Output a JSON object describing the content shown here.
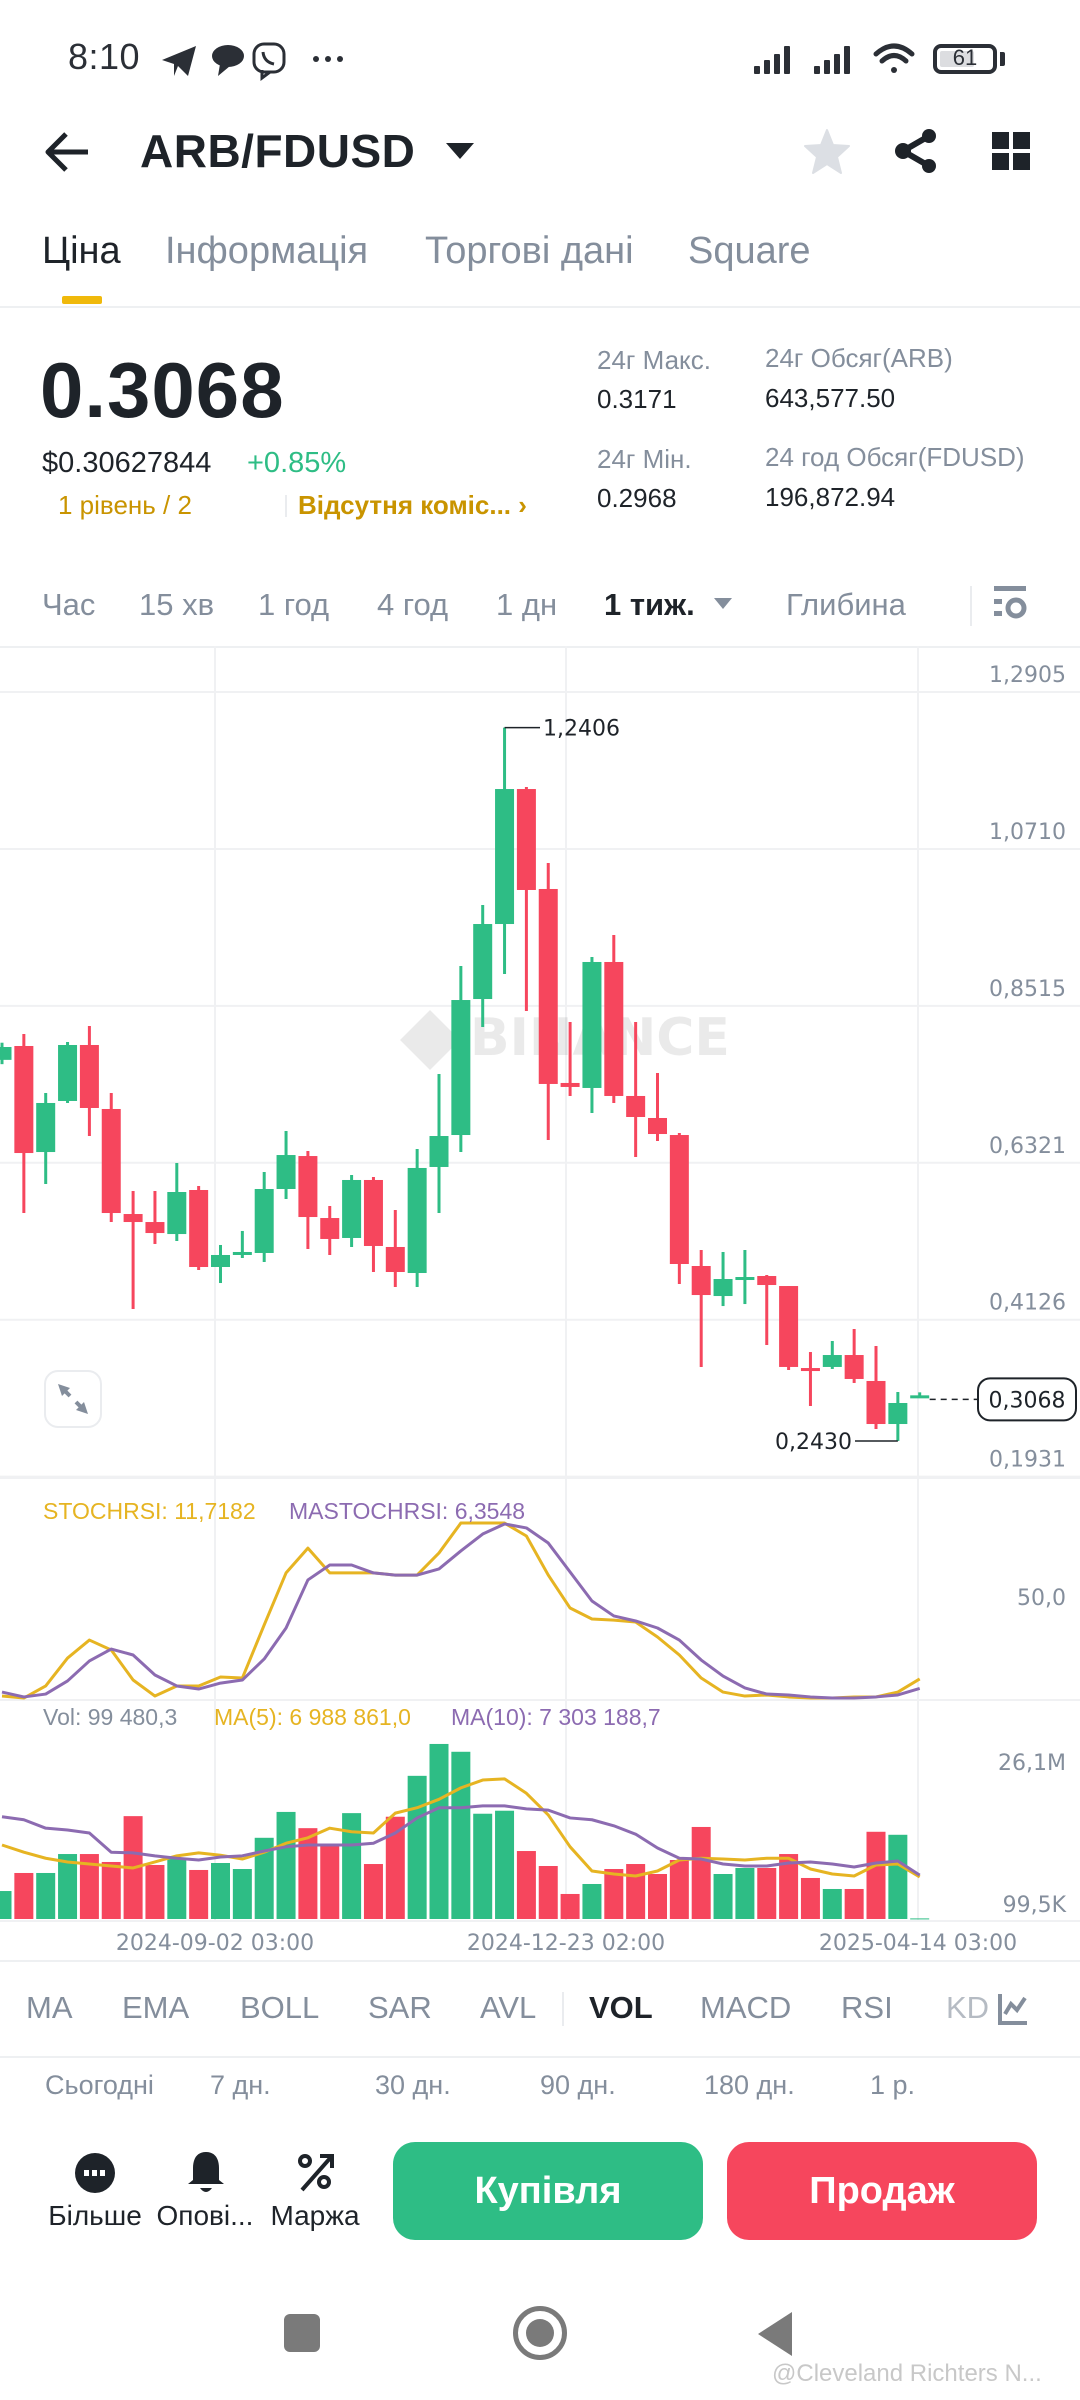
{
  "status_bar": {
    "time": "8:10",
    "notification_icons": [
      "telegram-icon",
      "chat-bubble-icon",
      "viber-icon",
      "more-dots-icon"
    ],
    "battery": "61",
    "signal_icons": [
      "signal-sim1-icon",
      "signal-sim2-icon",
      "wifi-icon"
    ]
  },
  "header": {
    "title": "ARB/FDUSD",
    "icons": [
      "back-arrow-icon",
      "star-icon",
      "share-icon",
      "grid-icon"
    ]
  },
  "tabs": [
    {
      "label": "Ціна",
      "active": true
    },
    {
      "label": "Інформація",
      "active": false
    },
    {
      "label": "Торгові дані",
      "active": false
    },
    {
      "label": "Square",
      "active": false
    }
  ],
  "price": {
    "last": "0.3068",
    "usd": "$0.30627844",
    "change_pct": "+0.85%",
    "tier": "1 рівень / 2",
    "fee": "Відсутня коміс... ›"
  },
  "stats": {
    "high_label": "24г Макс.",
    "high_value": "0.3171",
    "low_label": "24г Мін.",
    "low_value": "0.2968",
    "vol_base_label": "24г Обсяг(ARB)",
    "vol_base_value": "643,577.50",
    "vol_quote_label": "24 год Обсяг(FDUSD)",
    "vol_quote_value": "196,872.94"
  },
  "timeframes": [
    {
      "label": "Час",
      "active": false
    },
    {
      "label": "15 хв",
      "active": false
    },
    {
      "label": "1 год",
      "active": false
    },
    {
      "label": "4 год",
      "active": false
    },
    {
      "label": "1 дн",
      "active": false
    },
    {
      "label": "1 тиж.",
      "active": true
    },
    {
      "label": "Глибина",
      "active": false
    }
  ],
  "indicator_labels": {
    "stochrsi": "STOCHRSI: 11,7182",
    "mastochrsi": "MASTOCHRSI: 6,3548",
    "vol": "Vol: 99 480,3",
    "ma5": "MA(5): 6 988 861,0",
    "ma10": "MA(10): 7 303 188,7"
  },
  "indicator_tabs": [
    {
      "label": "MA",
      "active": false
    },
    {
      "label": "EMA",
      "active": false
    },
    {
      "label": "BOLL",
      "active": false
    },
    {
      "label": "SAR",
      "active": false
    },
    {
      "label": "AVL",
      "active": false
    },
    {
      "label": "VOL",
      "active": true
    },
    {
      "label": "MACD",
      "active": false
    },
    {
      "label": "RSI",
      "active": false
    },
    {
      "label": "KD",
      "active": false
    }
  ],
  "periods": [
    "Сьогодні",
    "7 дн.",
    "30 дн.",
    "90 дн.",
    "180 дн.",
    "1 р."
  ],
  "actions": {
    "more": "Більше",
    "alerts": "Опові...",
    "margin": "Маржа",
    "buy": "Купівля",
    "sell": "Продаж"
  },
  "watermark": "@Cleveland Richters N...",
  "colors": {
    "up": "#2ebd85",
    "down": "#f6465d",
    "accent": "#f0b90b",
    "stoch": "#e6b422",
    "mastoch": "#8c6bb1",
    "text_primary": "#1e2329",
    "text_secondary": "#848e9c"
  },
  "chart_data": {
    "type": "candlestick",
    "title": "ARB/FDUSD 1 тиж.",
    "price_axis": {
      "ticks": [
        "1,2905",
        "1,0710",
        "0,8515",
        "0,6321",
        "0,4126",
        "0,1931"
      ],
      "tick_values": [
        1.2905,
        1.071,
        0.8515,
        0.6321,
        0.4126,
        0.1931
      ],
      "range": [
        0.1931,
        1.2905
      ]
    },
    "annotations": {
      "high_marker": "1,2406",
      "low_marker": "0,2430",
      "last_price_tag": "0,3068"
    },
    "x_labels": [
      "2024-09-02 03:00",
      "2024-12-23 02:00",
      "2025-04-14 03:00"
    ],
    "candles": [
      {
        "o": 0.776,
        "h": 0.8,
        "l": 0.77,
        "c": 0.794
      },
      {
        "o": 0.7954,
        "h": 0.8122,
        "l": 0.5618,
        "c": 0.6457
      },
      {
        "o": 0.6471,
        "h": 0.7297,
        "l": 0.6024,
        "c": 0.7157
      },
      {
        "o": 0.7185,
        "h": 0.801,
        "l": 0.7157,
        "c": 0.7968
      },
      {
        "o": 0.7968,
        "h": 0.8234,
        "l": 0.6695,
        "c": 0.7087
      },
      {
        "o": 0.7073,
        "h": 0.7297,
        "l": 0.5492,
        "c": 0.5618
      },
      {
        "o": 0.5604,
        "h": 0.5926,
        "l": 0.4276,
        "c": 0.5492
      },
      {
        "o": 0.5492,
        "h": 0.5926,
        "l": 0.5185,
        "c": 0.5338
      },
      {
        "o": 0.5324,
        "h": 0.6317,
        "l": 0.5227,
        "c": 0.5912
      },
      {
        "o": 0.594,
        "h": 0.5996,
        "l": 0.4821,
        "c": 0.4863
      },
      {
        "o": 0.4863,
        "h": 0.5171,
        "l": 0.4639,
        "c": 0.5031
      },
      {
        "o": 0.5045,
        "h": 0.5367,
        "l": 0.4989,
        "c": 0.5073
      },
      {
        "o": 0.5059,
        "h": 0.6192,
        "l": 0.4933,
        "c": 0.5954
      },
      {
        "o": 0.5954,
        "h": 0.6765,
        "l": 0.5814,
        "c": 0.6429
      },
      {
        "o": 0.6415,
        "h": 0.6485,
        "l": 0.5115,
        "c": 0.5562
      },
      {
        "o": 0.5548,
        "h": 0.5716,
        "l": 0.5031,
        "c": 0.5255
      },
      {
        "o": 0.5269,
        "h": 0.615,
        "l": 0.5143,
        "c": 0.608
      },
      {
        "o": 0.608,
        "h": 0.6122,
        "l": 0.4793,
        "c": 0.5157
      },
      {
        "o": 0.5143,
        "h": 0.566,
        "l": 0.4583,
        "c": 0.4793
      },
      {
        "o": 0.4779,
        "h": 0.6513,
        "l": 0.4583,
        "c": 0.6248
      },
      {
        "o": 0.6262,
        "h": 0.7562,
        "l": 0.5618,
        "c": 0.6695
      },
      {
        "o": 0.6709,
        "h": 0.9073,
        "l": 0.6471,
        "c": 0.8597
      },
      {
        "o": 0.8611,
        "h": 0.9926,
        "l": 0.822,
        "c": 0.966
      },
      {
        "o": 0.966,
        "h": 1.2406,
        "l": 0.8961,
        "c": 1.1548
      },
      {
        "o": 1.1548,
        "h": 1.1576,
        "l": 0.8443,
        "c": 1.0136
      },
      {
        "o": 1.015,
        "h": 1.0513,
        "l": 0.6639,
        "c": 0.7423
      },
      {
        "o": 0.7437,
        "h": 0.829,
        "l": 0.7255,
        "c": 0.7381
      },
      {
        "o": 0.7367,
        "h": 0.9199,
        "l": 0.7017,
        "c": 0.9129
      },
      {
        "o": 0.9129,
        "h": 0.9506,
        "l": 0.7157,
        "c": 0.7255
      },
      {
        "o": 0.7255,
        "h": 0.829,
        "l": 0.6401,
        "c": 0.6961
      },
      {
        "o": 0.6947,
        "h": 0.7576,
        "l": 0.6625,
        "c": 0.6723
      },
      {
        "o": 0.6709,
        "h": 0.6737,
        "l": 0.4625,
        "c": 0.4905
      },
      {
        "o": 0.4877,
        "h": 0.5101,
        "l": 0.3465,
        "c": 0.4471
      },
      {
        "o": 0.4457,
        "h": 0.5073,
        "l": 0.4317,
        "c": 0.4695
      },
      {
        "o": 0.4709,
        "h": 0.5101,
        "l": 0.4345,
        "c": 0.4723
      },
      {
        "o": 0.4737,
        "h": 0.4751,
        "l": 0.3772,
        "c": 0.4611
      },
      {
        "o": 0.4597,
        "h": 0.4597,
        "l": 0.3423,
        "c": 0.3465
      },
      {
        "o": 0.345,
        "h": 0.3674,
        "l": 0.2919,
        "c": 0.3423
      },
      {
        "o": 0.3465,
        "h": 0.3828,
        "l": 0.3437,
        "c": 0.3632
      },
      {
        "o": 0.3632,
        "h": 0.3996,
        "l": 0.3241,
        "c": 0.3297
      },
      {
        "o": 0.3269,
        "h": 0.3758,
        "l": 0.2597,
        "c": 0.2667
      },
      {
        "o": 0.2667,
        "h": 0.3115,
        "l": 0.243,
        "c": 0.2961
      },
      {
        "o": 0.304,
        "h": 0.311,
        "l": 0.3035,
        "c": 0.3068
      }
    ],
    "stochrsi": {
      "axis_label": "50,0",
      "series": [
        {
          "name": "STOCHRSI",
          "values": [
            2.2,
            1.1,
            7.8,
            23.3,
            33.3,
            27.8,
            11.1,
            2.2,
            7.8,
            7.8,
            12.8,
            12.2,
            41.7,
            70.6,
            84.4,
            70.6,
            70.6,
            70.6,
            69.4,
            69.4,
            81.7,
            98.3,
            98.3,
            98.3,
            91.1,
            69.4,
            51.1,
            45.0,
            44.4,
            43.3,
            35.0,
            25.0,
            12.2,
            4.4,
            2.2,
            2.8,
            1.7,
            1.1,
            1.1,
            1.7,
            1.7,
            4.4,
            11.7
          ]
        },
        {
          "name": "MASTOCHRSI",
          "values": [
            4.4,
            1.7,
            3.3,
            10.6,
            21.7,
            28.3,
            25.0,
            13.9,
            7.8,
            6.1,
            9.4,
            11.1,
            22.8,
            40.0,
            66.7,
            75.0,
            75.0,
            70.6,
            69.4,
            69.4,
            72.8,
            82.8,
            92.2,
            97.8,
            95.6,
            87.2,
            71.1,
            55.0,
            46.7,
            43.9,
            40.0,
            33.3,
            22.2,
            13.3,
            6.7,
            3.3,
            2.8,
            1.7,
            1.1,
            1.1,
            1.7,
            2.8,
            6.4
          ]
        }
      ]
    },
    "volume": {
      "axis_labels": [
        "26,1M",
        "99,5K"
      ],
      "unit": "M",
      "bars": [
        4.65,
        7.65,
        7.65,
        10.8,
        10.8,
        9.48,
        17.1,
        8.98,
        9.97,
        8.15,
        9.31,
        8.31,
        13.5,
        17.8,
        15.1,
        12.1,
        17.6,
        9.14,
        17.0,
        23.8,
        29.1,
        27.8,
        17.5,
        18.0,
        11.3,
        8.81,
        4.16,
        5.82,
        8.31,
        9.14,
        7.48,
        9.81,
        15.3,
        7.48,
        8.48,
        8.48,
        10.8,
        6.82,
        4.99,
        4.99,
        14.5,
        14.0,
        0.0995
      ],
      "ma5": [
        12.3,
        11.1,
        10.1,
        9.48,
        9.14,
        8.81,
        8.48,
        9.48,
        10.5,
        11.0,
        10.6,
        9.97,
        11.1,
        12.6,
        13.5,
        15.1,
        14.5,
        14.3,
        17.6,
        18.5,
        19.9,
        21.8,
        23.1,
        23.3,
        20.9,
        17.3,
        12.0,
        7.98,
        7.48,
        7.15,
        7.98,
        9.81,
        10.1,
        9.97,
        9.81,
        10.1,
        10.1,
        8.31,
        7.48,
        7.15,
        8.98,
        9.14,
        6.99
      ],
      "ma10": [
        17.0,
        16.5,
        15.1,
        14.8,
        14.3,
        11.1,
        11.0,
        10.5,
        10.1,
        9.81,
        10.3,
        10.5,
        11.3,
        12.0,
        12.3,
        12.3,
        12.3,
        12.6,
        14.3,
        16.8,
        18.5,
        18.5,
        18.8,
        18.8,
        18.3,
        18.1,
        16.8,
        16.5,
        15.5,
        14.1,
        11.8,
        10.1,
        9.97,
        9.14,
        8.81,
        8.81,
        9.31,
        9.48,
        9.14,
        8.64,
        9.31,
        9.64,
        7.3
      ]
    }
  }
}
